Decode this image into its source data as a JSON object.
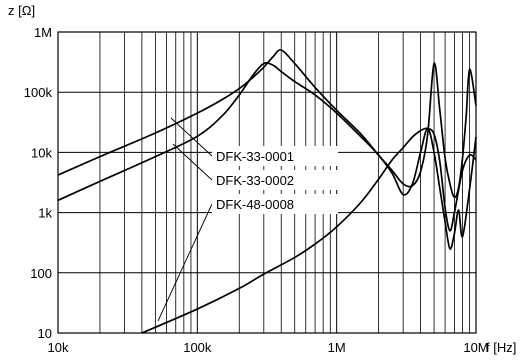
{
  "chart_data": {
    "type": "line",
    "title": "",
    "xlabel": "f [Hz]",
    "ylabel": "z [Ω]",
    "x_scale": "log",
    "y_scale": "log",
    "xlim": [
      10000,
      10000000
    ],
    "ylim": [
      10,
      1000000
    ],
    "grid": true,
    "x_ticks": [
      {
        "value": 10000,
        "label": "10k"
      },
      {
        "value": 100000,
        "label": "100k"
      },
      {
        "value": 1000000,
        "label": "1M"
      },
      {
        "value": 10000000,
        "label": "10M"
      }
    ],
    "y_ticks": [
      {
        "value": 10,
        "label": "10"
      },
      {
        "value": 100,
        "label": "100"
      },
      {
        "value": 1000,
        "label": "1k"
      },
      {
        "value": 10000,
        "label": "10k"
      },
      {
        "value": 100000,
        "label": "100k"
      },
      {
        "value": 1000000,
        "label": "1M"
      }
    ],
    "series": [
      {
        "name": "DFK-33-0001",
        "x": [
          10000,
          20000,
          50000,
          100000,
          150000,
          200000,
          250000,
          300000,
          350000,
          400000,
          500000,
          700000,
          1000000,
          1500000,
          2000000,
          2500000,
          3000000,
          3500000,
          4000000,
          4500000,
          5000000,
          5500000,
          6000000,
          6500000,
          7000000,
          7500000,
          8000000,
          8500000,
          9000000,
          10000000
        ],
        "y": [
          4200,
          8500,
          21000,
          45000,
          75000,
          115000,
          175000,
          260000,
          390000,
          500000,
          300000,
          120000,
          50000,
          20000,
          9000,
          5000,
          3000,
          2800,
          4800,
          20000,
          300000,
          50000,
          8000,
          3000,
          1800,
          2600,
          8000,
          40000,
          240000,
          60000
        ]
      },
      {
        "name": "DFK-33-0002",
        "x": [
          10000,
          20000,
          50000,
          100000,
          150000,
          200000,
          250000,
          300000,
          350000,
          400000,
          500000,
          700000,
          1000000,
          1500000,
          2000000,
          2500000,
          3000000,
          3500000,
          4000000,
          4500000,
          5000000,
          5500000,
          6000000,
          6500000,
          7000000,
          7500000,
          8000000,
          9000000,
          10000000
        ],
        "y": [
          1600,
          3300,
          8500,
          18500,
          40000,
          90000,
          190000,
          300000,
          280000,
          220000,
          150000,
          90000,
          45000,
          18000,
          9000,
          4500,
          2000,
          3000,
          10000,
          25000,
          10000,
          2500,
          700,
          250,
          450,
          1100,
          400,
          2500,
          18000
        ]
      },
      {
        "name": "DFK-48-0008",
        "x": [
          40000,
          100000,
          200000,
          300000,
          500000,
          700000,
          1000000,
          1500000,
          2000000,
          2500000,
          3000000,
          3500000,
          4000000,
          4500000,
          5000000,
          5500000,
          6000000,
          6500000,
          7000000,
          8000000,
          9000000,
          10000000
        ],
        "y": [
          10,
          25,
          55,
          95,
          180,
          300,
          580,
          1500,
          3600,
          7500,
          12000,
          18000,
          23000,
          25000,
          20000,
          7000,
          1200,
          500,
          1000,
          5000,
          9000,
          7500
        ]
      }
    ],
    "legend": {
      "placement": "callout-left",
      "entries": [
        "DFK-33-0001",
        "DFK-33-0002",
        "DFK-48-0008"
      ]
    }
  }
}
